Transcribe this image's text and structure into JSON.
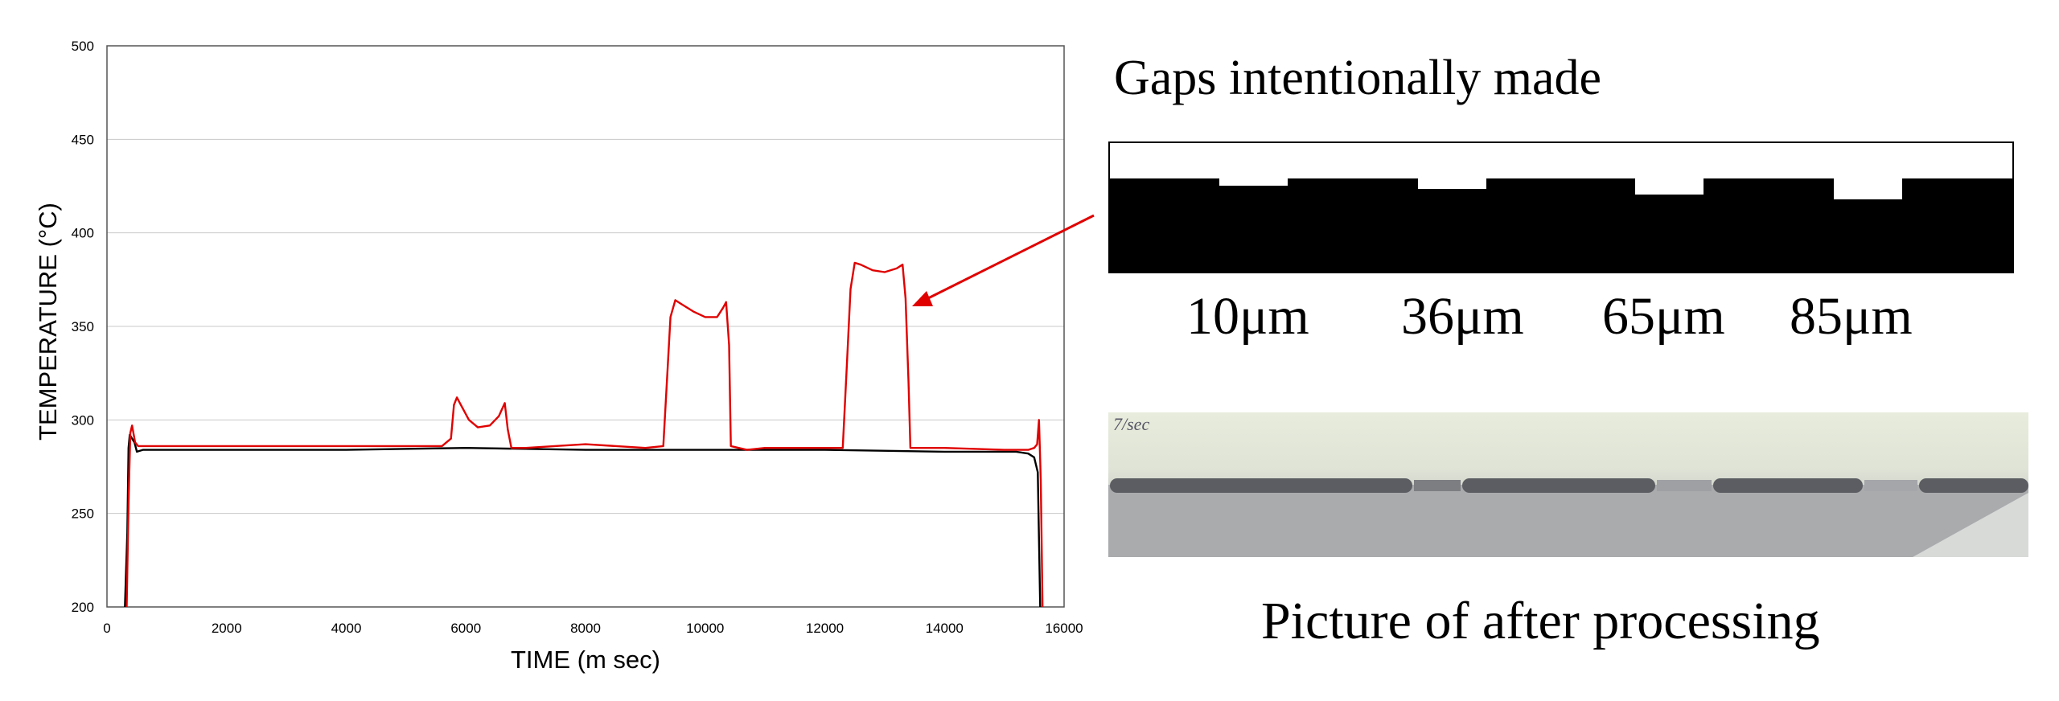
{
  "chart_data": {
    "type": "line",
    "xlabel": "TIME (m sec)",
    "ylabel": "TEMPERATURE (°C)",
    "xlim": [
      0,
      16000
    ],
    "ylim": [
      200,
      500
    ],
    "x_ticks": [
      "0",
      "2000",
      "4000",
      "6000",
      "8000",
      "10000",
      "12000",
      "14000",
      "16000"
    ],
    "y_ticks": [
      "200",
      "250",
      "300",
      "350",
      "400",
      "450",
      "500"
    ],
    "grid": "horizontal",
    "series": [
      {
        "color": "#000000",
        "x": [
          300,
          340,
          360,
          380,
          420,
          460,
          500,
          600,
          1000,
          2000,
          4000,
          6000,
          8000,
          10000,
          12000,
          14000,
          15200,
          15400,
          15500,
          15560,
          15600
        ],
        "y": [
          200,
          240,
          285,
          292,
          290,
          288,
          283,
          284,
          284,
          284,
          284,
          285,
          284,
          284,
          284,
          283,
          283,
          282,
          280,
          272,
          200
        ]
      },
      {
        "color": "#e00000",
        "x": [
          330,
          360,
          390,
          420,
          470,
          520,
          700,
          2000,
          4000,
          5600,
          5750,
          5800,
          5850,
          5900,
          6050,
          6200,
          6400,
          6550,
          6650,
          6700,
          6760,
          7000,
          8000,
          9000,
          9300,
          9360,
          9420,
          9500,
          9600,
          9800,
          10000,
          10200,
          10300,
          10350,
          10400,
          10430,
          10700,
          11000,
          12000,
          12300,
          12370,
          12430,
          12500,
          12600,
          12800,
          13000,
          13200,
          13300,
          13350,
          13400,
          13430,
          13700,
          14000,
          15000,
          15400,
          15500,
          15550,
          15580,
          15610,
          15640
        ],
        "y": [
          200,
          255,
          293,
          297,
          288,
          286,
          286,
          286,
          286,
          286,
          290,
          308,
          312,
          309,
          300,
          296,
          297,
          302,
          309,
          295,
          285,
          285,
          287,
          285,
          286,
          320,
          355,
          364,
          362,
          358,
          355,
          355,
          360,
          363,
          340,
          286,
          284,
          285,
          285,
          285,
          330,
          370,
          384,
          383,
          380,
          379,
          381,
          383,
          365,
          320,
          285,
          285,
          285,
          284,
          284,
          285,
          287,
          300,
          268,
          200
        ]
      }
    ]
  },
  "gaps_title": "Gaps intentionally made",
  "gap_labels": [
    "10μm",
    "36μm",
    "65μm",
    "85μm"
  ],
  "photo_caption": "Picture of after processing",
  "photo_scribble": "7/sec",
  "colors": {
    "red": "#e00000",
    "line_black": "#000000",
    "gridline": "#c8c8c8"
  }
}
